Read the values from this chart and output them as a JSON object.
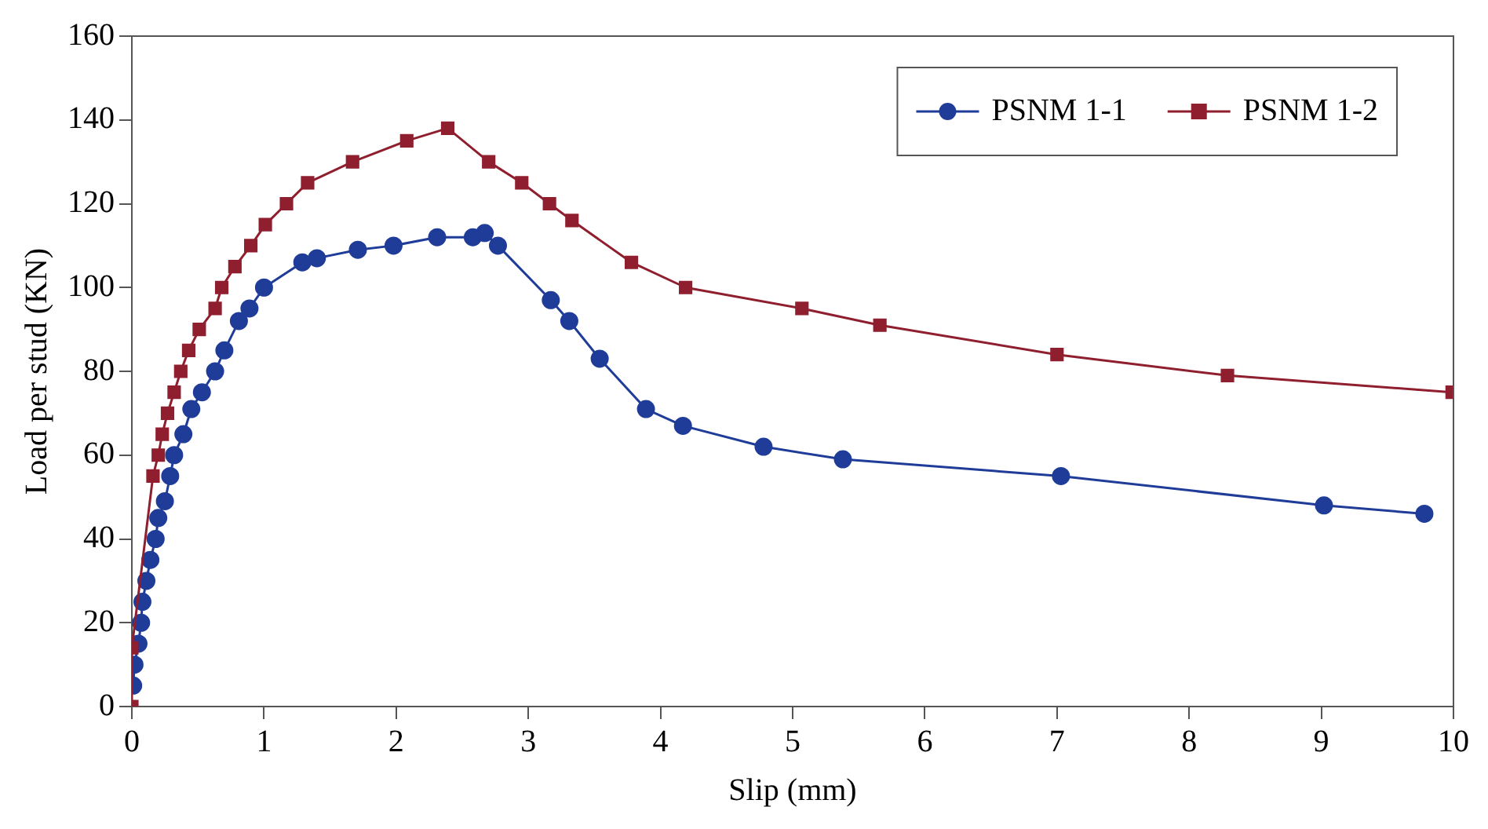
{
  "chart_data": {
    "type": "line",
    "xlabel": "Slip (mm)",
    "ylabel": "Load per stud (KN)",
    "xlim": [
      0,
      10
    ],
    "xticks": [
      0,
      1,
      2,
      3,
      4,
      5,
      6,
      7,
      8,
      9,
      10
    ],
    "ylim": [
      0,
      160
    ],
    "yticks": [
      0,
      20,
      40,
      60,
      80,
      100,
      120,
      140,
      160
    ],
    "grid": false,
    "legend": "top right",
    "line_style": "solid",
    "series": [
      {
        "name": "PSNM 1-1",
        "color": "#1f3c99",
        "marker": "circle",
        "x": [
          0.01,
          0.02,
          0.05,
          0.07,
          0.08,
          0.11,
          0.14,
          0.18,
          0.2,
          0.25,
          0.29,
          0.32,
          0.39,
          0.45,
          0.53,
          0.63,
          0.7,
          0.81,
          0.89,
          1.0,
          1.29,
          1.4,
          1.71,
          1.98,
          2.31,
          2.58,
          2.67,
          2.77,
          3.17,
          3.31,
          3.54,
          3.89,
          4.17,
          4.78,
          5.38,
          7.03,
          9.02,
          9.78
        ],
        "values": [
          5,
          10,
          15,
          20,
          25,
          30,
          35,
          40,
          45,
          49,
          55,
          60,
          65,
          71,
          75,
          80,
          85,
          92,
          95,
          100,
          106,
          107,
          109,
          110,
          112,
          112,
          113,
          110,
          97,
          92,
          83,
          71,
          67,
          62,
          59,
          55,
          48,
          46
        ]
      },
      {
        "name": "PSNM 1-2",
        "color": "#8f1f2f",
        "marker": "square",
        "x": [
          0,
          0,
          0.16,
          0.2,
          0.23,
          0.27,
          0.32,
          0.37,
          0.43,
          0.51,
          0.63,
          0.68,
          0.78,
          0.9,
          1.01,
          1.17,
          1.33,
          1.67,
          2.08,
          2.39,
          2.7,
          2.95,
          3.16,
          3.33,
          3.78,
          4.19,
          5.07,
          5.66,
          7.0,
          8.29,
          9.99
        ],
        "values": [
          0,
          14,
          55,
          60,
          65,
          70,
          75,
          80,
          85,
          90,
          95,
          100,
          105,
          110,
          115,
          120,
          125,
          130,
          135,
          138,
          130,
          125,
          120,
          116,
          106,
          100,
          95,
          91,
          84,
          79,
          75
        ]
      }
    ]
  }
}
